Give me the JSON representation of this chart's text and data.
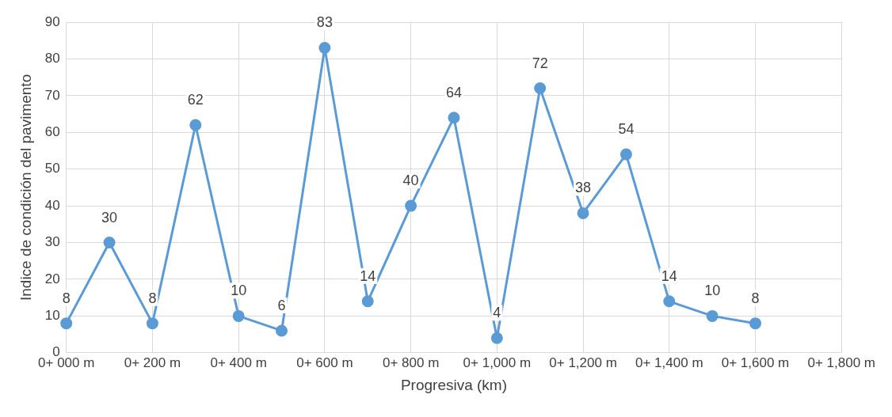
{
  "chart_data": {
    "type": "line",
    "xlabel": "Progresiva (km)",
    "ylabel": "Indice de condición del pavimento",
    "categories": [
      "0+ 000 m",
      null,
      "0+ 200 m",
      null,
      "0+ 400 m",
      null,
      "0+ 600 m",
      null,
      "0+ 800 m",
      null,
      "0+ 1,000 m",
      null,
      "0+ 1,200 m",
      null,
      "0+ 1,400 m",
      null,
      "0+ 1,600 m",
      null,
      "0+ 1,800 m"
    ],
    "series": [
      {
        "color": "#5b9bd5",
        "values": [
          8,
          30,
          8,
          62,
          10,
          6,
          83,
          14,
          40,
          64,
          4,
          72,
          38,
          54,
          14,
          10,
          8,
          null,
          null
        ]
      }
    ],
    "ylim": [
      0,
      90
    ],
    "yticks": [
      0,
      10,
      20,
      30,
      40,
      50,
      60,
      70,
      80,
      90
    ],
    "grid": true,
    "marker": "circle",
    "line_style": "solid",
    "data_labels": true
  }
}
